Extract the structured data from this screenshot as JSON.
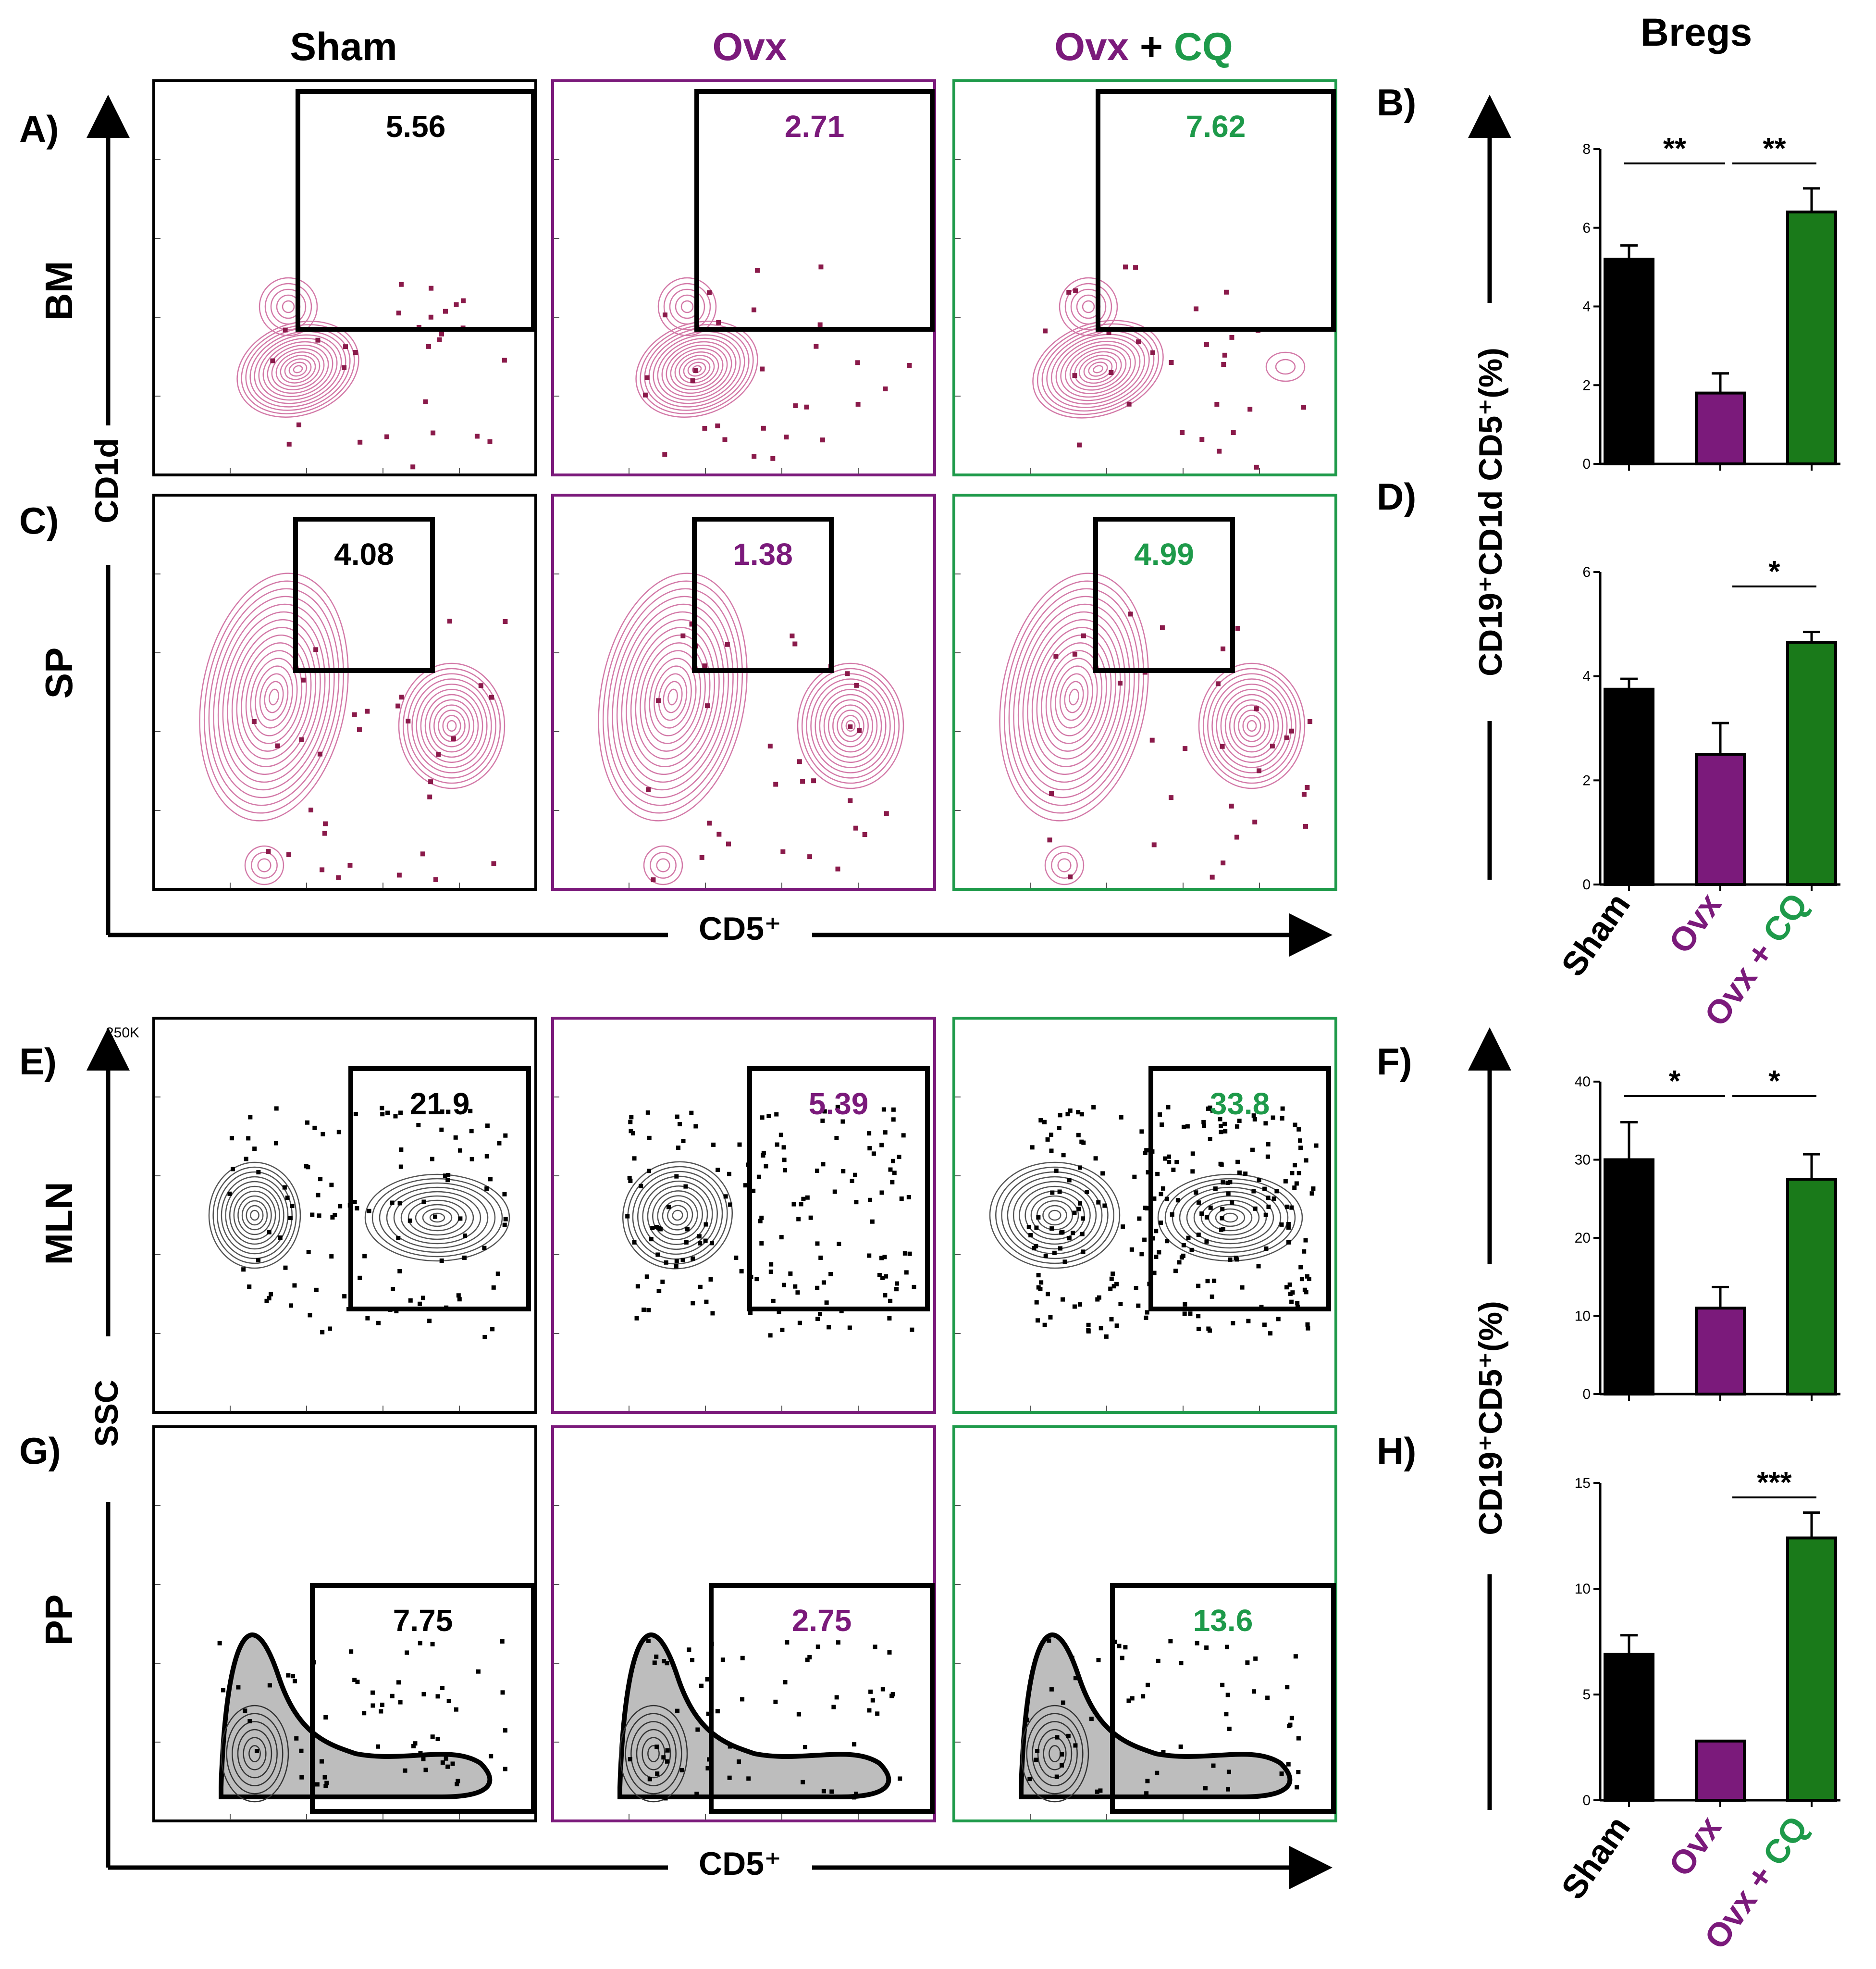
{
  "colors": {
    "sham": "#000000",
    "ovx": "#7b1a7b",
    "cq": "#1e9a4a",
    "contour_pink": "#d37aa8",
    "event_dot": "#8a1a4a",
    "contour_gray": "#555555",
    "bar_purple": "#7b1a7b",
    "bar_green": "#1a7a1a"
  },
  "column_headers": {
    "sham": "Sham",
    "ovx": "Ovx",
    "ovx_cq_prefix": "Ovx",
    "plus": " + ",
    "cq": "CQ"
  },
  "bregs_title": "Bregs",
  "panel_labels": [
    "A)",
    "B)",
    "C)",
    "D)",
    "E)",
    "F)",
    "G)",
    "H)"
  ],
  "tissues": [
    "BM",
    "SP",
    "MLN",
    "PP"
  ],
  "axis_labels": {
    "cd1d": "CD1d",
    "ssc": "SSC",
    "cd5_top": "CD5⁺",
    "cd5_bottom": "CD5⁺",
    "y_bar_top": "CD19⁺CD1d CD5⁺(%)",
    "y_bar_bottom": "CD19⁺CD5⁺(%)",
    "ssc_tick": "250K"
  },
  "gate_values": {
    "BM": [
      "5.56",
      "2.71",
      "7.62"
    ],
    "SP": [
      "4.08",
      "1.38",
      "4.99"
    ],
    "MLN": [
      "21.9",
      "5.39",
      "33.8"
    ],
    "PP": [
      "7.75",
      "2.75",
      "13.6"
    ]
  },
  "bar_categories": {
    "sham": "Sham",
    "ovx": "Ovx",
    "ovx_cq_prefix": "Ovx + ",
    "cq": "CQ"
  },
  "chart_data": [
    {
      "type": "bar",
      "panel": "B)",
      "tissue": "BM",
      "categories": [
        "Sham",
        "Ovx",
        "Ovx + CQ"
      ],
      "values": [
        5.2,
        1.8,
        6.4
      ],
      "errors": [
        0.35,
        0.5,
        0.6
      ],
      "ylim": [
        0,
        8
      ],
      "yticks": [
        0,
        2,
        4,
        6,
        8
      ],
      "ylabel": "CD19⁺CD1d CD5⁺(%)",
      "significance": [
        {
          "from": 0,
          "to": 1,
          "label": "**"
        },
        {
          "from": 1,
          "to": 2,
          "label": "**"
        }
      ]
    },
    {
      "type": "bar",
      "panel": "D)",
      "tissue": "SP",
      "categories": [
        "Sham",
        "Ovx",
        "Ovx + CQ"
      ],
      "values": [
        3.75,
        2.5,
        4.65
      ],
      "errors": [
        0.2,
        0.6,
        0.2
      ],
      "ylim": [
        0,
        6
      ],
      "yticks": [
        0,
        2,
        4,
        6
      ],
      "ylabel": "CD19⁺CD1d CD5⁺(%)",
      "significance": [
        {
          "from": 1,
          "to": 2,
          "label": "*"
        }
      ]
    },
    {
      "type": "bar",
      "panel": "F)",
      "tissue": "MLN",
      "categories": [
        "Sham",
        "Ovx",
        "Ovx + CQ"
      ],
      "values": [
        30,
        11,
        27.5
      ],
      "errors": [
        4.8,
        2.7,
        3.2
      ],
      "ylim": [
        0,
        40
      ],
      "yticks": [
        0,
        10,
        20,
        30,
        40
      ],
      "ylabel": "CD19⁺CD5⁺(%)",
      "significance": [
        {
          "from": 0,
          "to": 1,
          "label": "*"
        },
        {
          "from": 1,
          "to": 2,
          "label": "*"
        }
      ]
    },
    {
      "type": "bar",
      "panel": "H)",
      "tissue": "PP",
      "categories": [
        "Sham",
        "Ovx",
        "Ovx + CQ"
      ],
      "values": [
        6.9,
        2.8,
        12.4
      ],
      "errors": [
        0.9,
        0.0,
        1.2
      ],
      "ylim": [
        0,
        15
      ],
      "yticks": [
        0,
        5,
        10,
        15
      ],
      "ylabel": "CD19⁺CD5⁺(%)",
      "significance": [
        {
          "from": 1,
          "to": 2,
          "label": "***"
        }
      ]
    }
  ]
}
